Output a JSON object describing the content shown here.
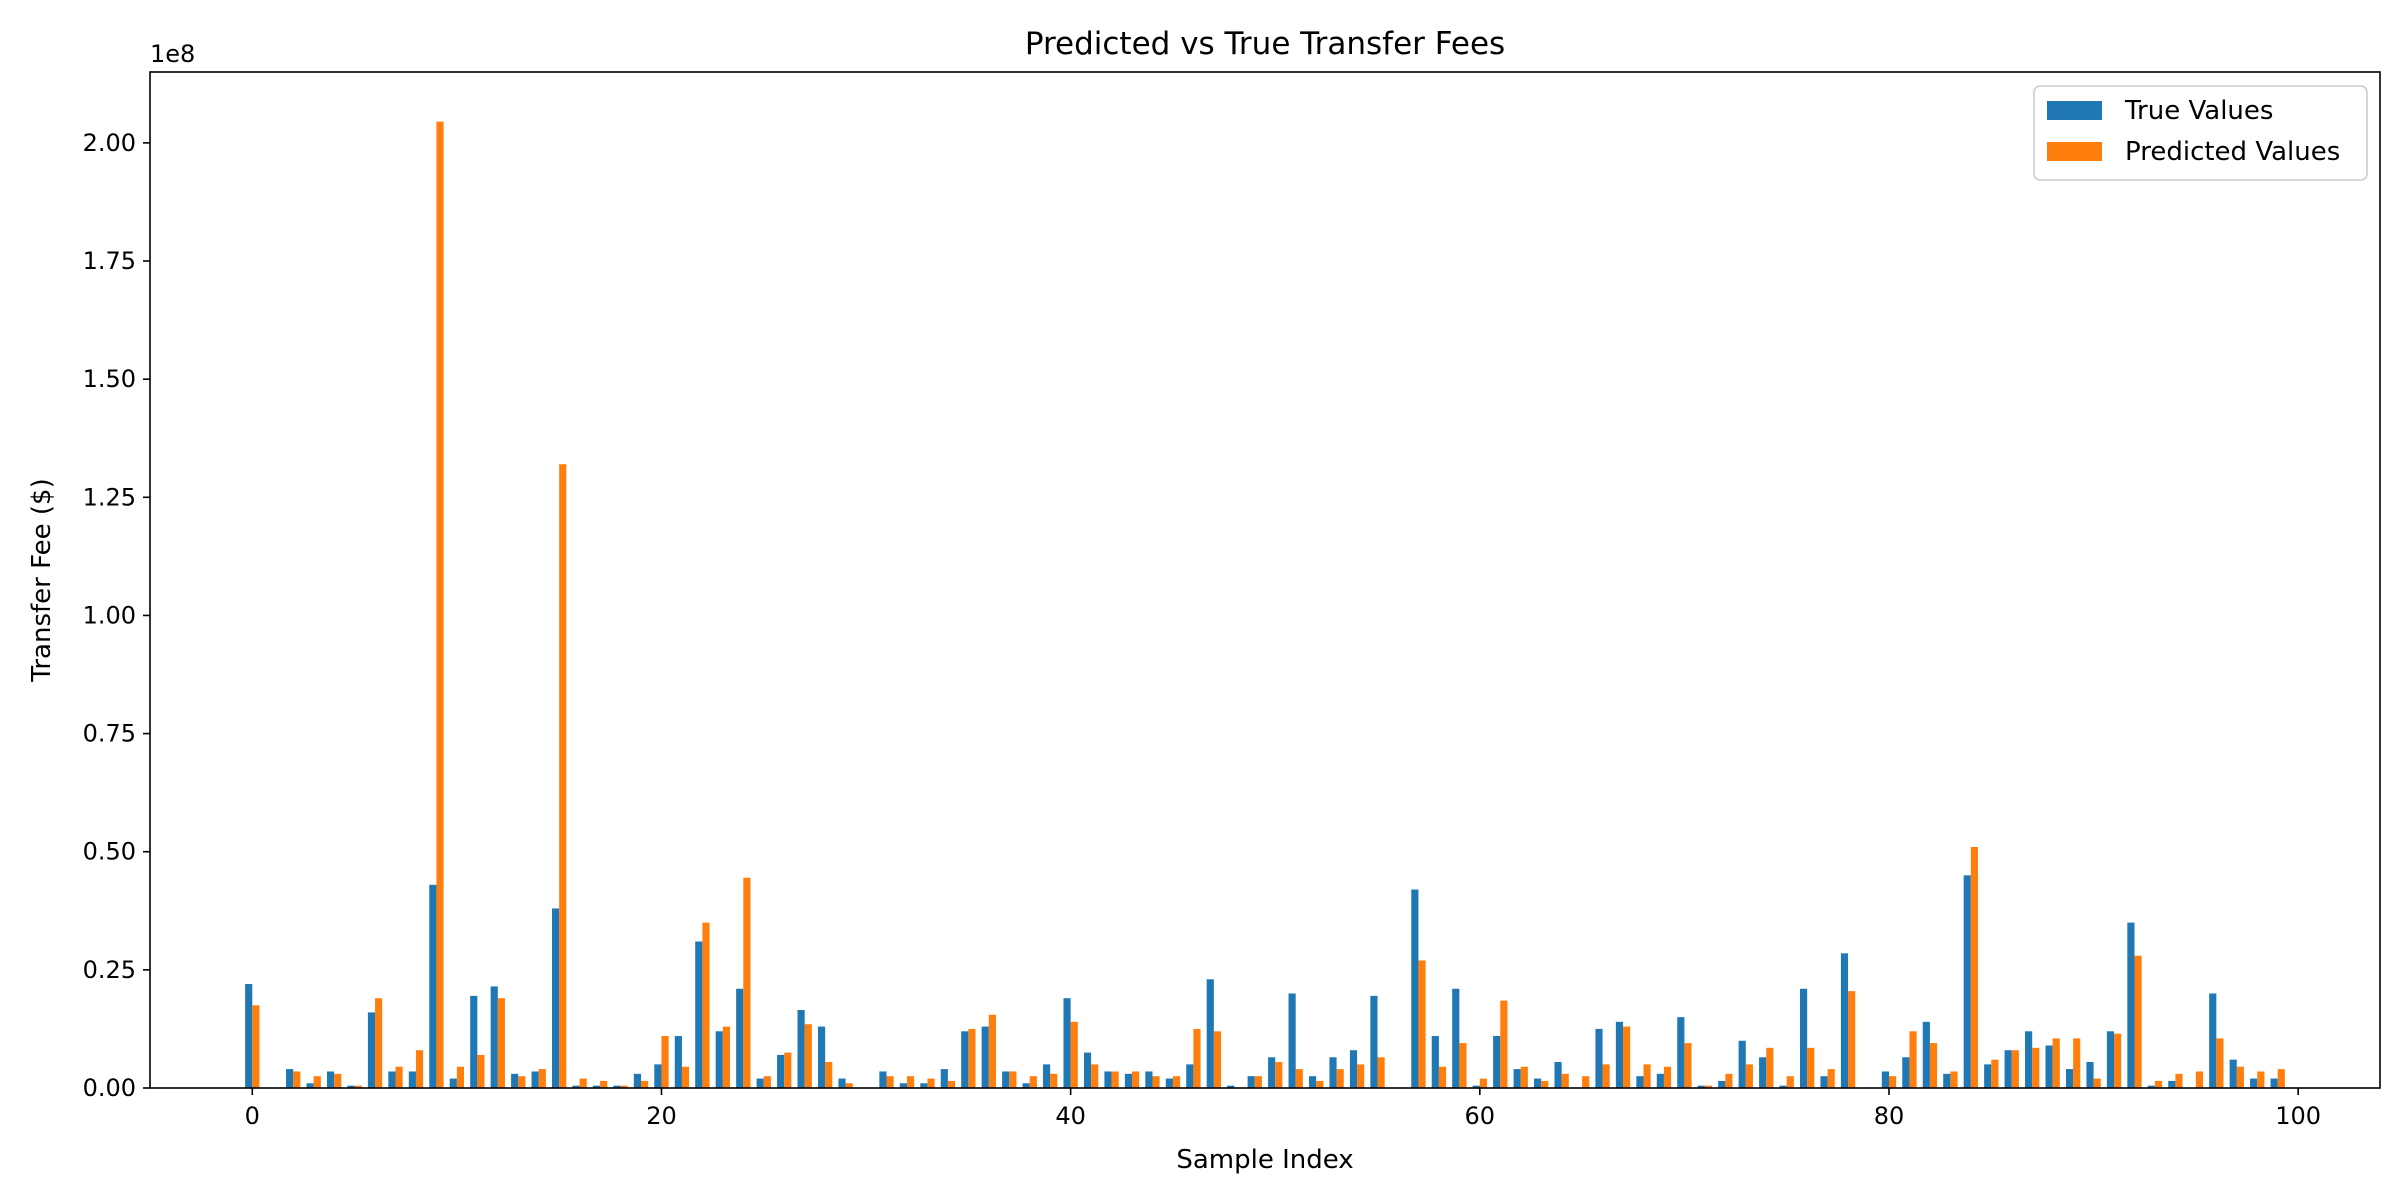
{
  "chart_data": {
    "type": "bar",
    "title": "Predicted vs True Transfer Fees",
    "xlabel": "Sample Index",
    "ylabel": "Transfer Fee ($)",
    "y_offset_label": "1e8",
    "xlim": [
      -5,
      104
    ],
    "ylim": [
      0,
      2.15
    ],
    "x_ticks": [
      0,
      20,
      40,
      60,
      80,
      100
    ],
    "x_tick_labels": [
      "0",
      "20",
      "40",
      "60",
      "80",
      "100"
    ],
    "y_ticks": [
      0,
      0.25,
      0.5,
      0.75,
      1.0,
      1.25,
      1.5,
      1.75,
      2.0
    ],
    "y_tick_labels": [
      "0.00",
      "0.25",
      "0.50",
      "0.75",
      "1.00",
      "1.25",
      "1.50",
      "1.75",
      "2.00"
    ],
    "value_units": "1e8 $",
    "legend": {
      "position": "top-right",
      "entries": [
        {
          "label": "True Values",
          "color": "#1f77b4"
        },
        {
          "label": "Predicted Values",
          "color": "#ff7f0e"
        }
      ]
    },
    "series": [
      {
        "name": "True Values",
        "color": "#1f77b4",
        "values": [
          0.22,
          0.0,
          0.04,
          0.01,
          0.035,
          0.005,
          0.16,
          0.035,
          0.035,
          0.43,
          0.02,
          0.195,
          0.215,
          0.03,
          0.035,
          0.38,
          0.005,
          0.005,
          0.005,
          0.03,
          0.05,
          0.11,
          0.31,
          0.12,
          0.21,
          0.02,
          0.07,
          0.165,
          0.13,
          0.02,
          0.0,
          0.035,
          0.01,
          0.01,
          0.04,
          0.12,
          0.13,
          0.035,
          0.01,
          0.05,
          0.19,
          0.075,
          0.035,
          0.03,
          0.035,
          0.02,
          0.05,
          0.23,
          0.005,
          0.025,
          0.065,
          0.2,
          0.025,
          0.065,
          0.08,
          0.195,
          0.0,
          0.42,
          0.11,
          0.21,
          0.005,
          0.11,
          0.04,
          0.02,
          0.055,
          0.0,
          0.125,
          0.14,
          0.025,
          0.03,
          0.15,
          0.005,
          0.015,
          0.1,
          0.065,
          0.005,
          0.21,
          0.025,
          0.285,
          0.0,
          0.035,
          0.065,
          0.14,
          0.03,
          0.45,
          0.05,
          0.08,
          0.12,
          0.09,
          0.04,
          0.055,
          0.12,
          0.35,
          0.005,
          0.015,
          0.0,
          0.2,
          0.06,
          0.02,
          0.02
        ]
      },
      {
        "name": "Predicted Values",
        "color": "#ff7f0e",
        "values": [
          0.175,
          0.0,
          0.035,
          0.025,
          0.03,
          0.005,
          0.19,
          0.045,
          0.08,
          2.045,
          0.045,
          0.07,
          0.19,
          0.025,
          0.04,
          1.32,
          0.02,
          0.015,
          0.005,
          0.015,
          0.11,
          0.045,
          0.35,
          0.13,
          0.445,
          0.025,
          0.075,
          0.135,
          0.055,
          0.01,
          0.0,
          0.025,
          0.025,
          0.02,
          0.015,
          0.125,
          0.155,
          0.035,
          0.025,
          0.03,
          0.14,
          0.05,
          0.035,
          0.035,
          0.025,
          0.025,
          0.125,
          0.12,
          0.0,
          0.025,
          0.055,
          0.04,
          0.015,
          0.04,
          0.05,
          0.065,
          0.0,
          0.27,
          0.045,
          0.095,
          0.02,
          0.185,
          0.045,
          0.015,
          0.03,
          0.025,
          0.05,
          0.13,
          0.05,
          0.045,
          0.095,
          0.005,
          0.03,
          0.05,
          0.085,
          0.025,
          0.085,
          0.04,
          0.205,
          0.0,
          0.025,
          0.12,
          0.095,
          0.035,
          0.51,
          0.06,
          0.08,
          0.085,
          0.105,
          0.105,
          0.02,
          0.115,
          0.28,
          0.015,
          0.03,
          0.035,
          0.105,
          0.045,
          0.035,
          0.04
        ]
      }
    ]
  }
}
